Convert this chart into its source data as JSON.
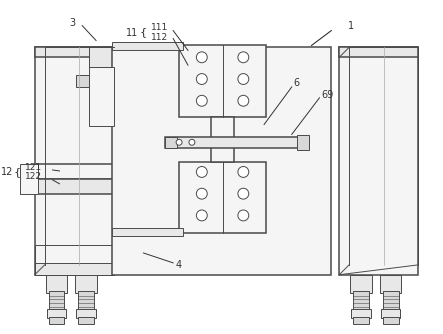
{
  "bg_color": "#ffffff",
  "lc": "#4a4a4a",
  "lc_thin": "#666666",
  "fc_light": "#f5f5f5",
  "fc_mid": "#e8e8e8",
  "fc_dark": "#d8d8d8",
  "ann_color": "#333333",
  "ann_fs": 7.0
}
